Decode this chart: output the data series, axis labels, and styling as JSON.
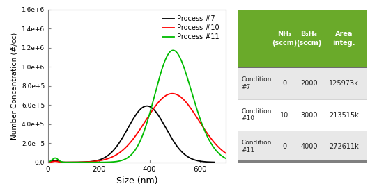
{
  "xlabel": "Size (nm)",
  "ylabel": "Number Concentration (#/cc)",
  "xlim": [
    0,
    700
  ],
  "ylim": [
    0,
    1600000.0
  ],
  "yticks": [
    0.0,
    200000.0,
    400000.0,
    600000.0,
    800000.0,
    1000000.0,
    1200000.0,
    1400000.0,
    1600000.0
  ],
  "ytick_labels": [
    "0.0",
    "2.0e+5",
    "4.0e+5",
    "6.0e+5",
    "8.0e+5",
    "1.0e+6",
    "1.2e+6",
    "1.4e+6",
    "1.6e+6"
  ],
  "xticks": [
    0,
    200,
    400,
    600
  ],
  "process7_color": "#000000",
  "process10_color": "#ff0000",
  "process11_color": "#00bb00",
  "legend_labels": [
    "Process #7",
    "Process #10",
    "Process #11"
  ],
  "table_header_color": "#6aaa2a",
  "table_header_text_color": "#ffffff",
  "table_row_colors": [
    "#e8e8e8",
    "#ffffff",
    "#e8e8e8"
  ],
  "table_bottom_bar_color": "#808080",
  "table_headers": [
    "",
    "NH₃\n(sccm)",
    "B₂H₆\n(sccm)",
    "Area\ninteg."
  ],
  "table_rows": [
    [
      "Condition\n#7",
      "0",
      "2000",
      "125973k"
    ],
    [
      "Condition\n#10",
      "10",
      "3000",
      "213515k"
    ],
    [
      "Condition\n#11",
      "0",
      "4000",
      "272611k"
    ]
  ]
}
